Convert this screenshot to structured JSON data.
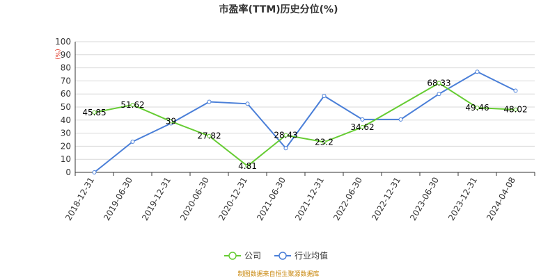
{
  "colors": {
    "company": "#66cc33",
    "industry": "#4a7fd8",
    "grid": "#d8d8d8",
    "axis": "#333333",
    "ylabel": "#e0301e",
    "source": "#c8860a"
  },
  "chart_data": {
    "type": "line",
    "title": "市盈率(TTM)历史分位(%)",
    "ylabel": "(%)",
    "xlabel": "",
    "ylim": [
      0,
      100
    ],
    "yticks": [
      0,
      10,
      20,
      30,
      40,
      50,
      60,
      70,
      80,
      90,
      100
    ],
    "grid": true,
    "legend_position": "bottom",
    "categories": [
      "2018-12-31",
      "2019-06-30",
      "2019-12-31",
      "2020-06-30",
      "2020-12-31",
      "2021-06-30",
      "2021-12-31",
      "2022-06-30",
      "2022-12-31",
      "2023-06-30",
      "2023-12-31",
      "2024-04-08"
    ],
    "series": [
      {
        "name": "公司",
        "color": "#66cc33",
        "labeled": true,
        "values": [
          45.85,
          51.62,
          39,
          27.82,
          4.81,
          28.43,
          23.2,
          34.62,
          null,
          68.33,
          49.46,
          48.02
        ]
      },
      {
        "name": "行业均值",
        "color": "#4a7fd8",
        "labeled": false,
        "values": [
          0,
          23.5,
          37.5,
          54,
          52.5,
          18.5,
          58.5,
          40.5,
          40.5,
          60,
          77,
          62.5
        ]
      }
    ]
  },
  "source_note": "制图数据来自恒生聚源数据库"
}
